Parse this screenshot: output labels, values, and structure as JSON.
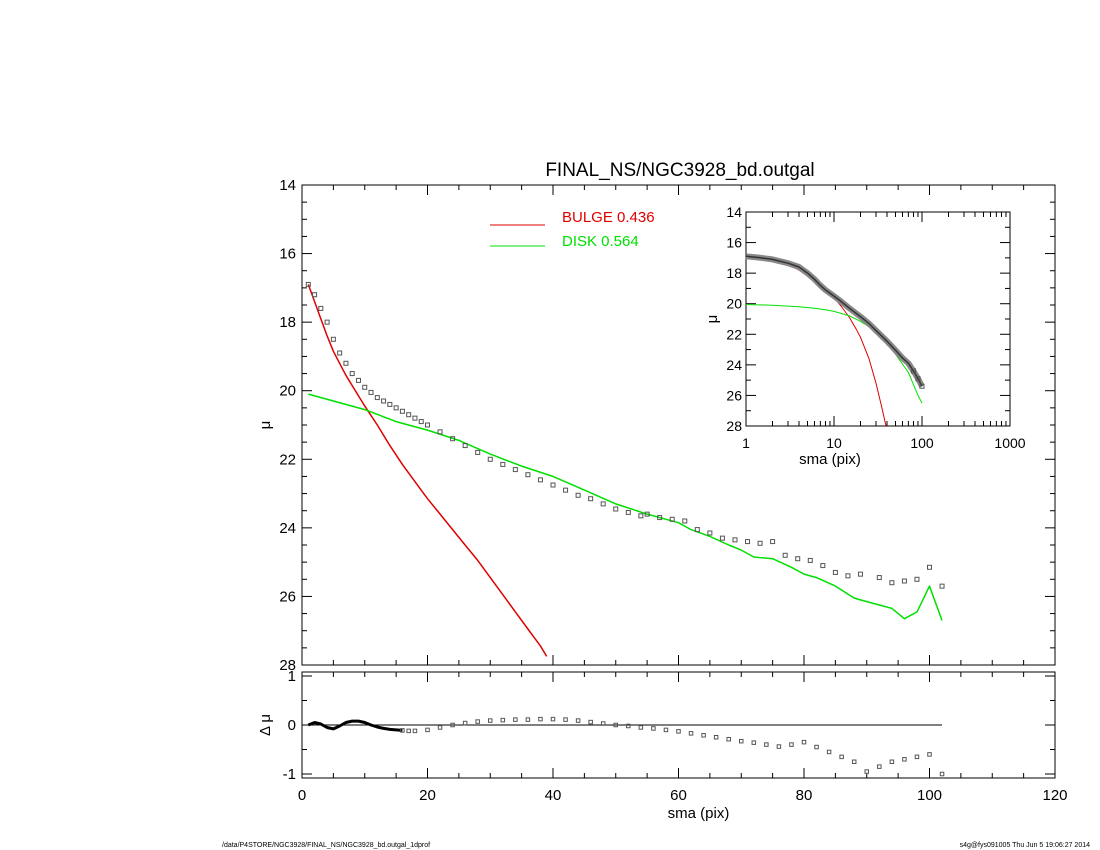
{
  "title": "FINAL_NS/NGC3928_bd.outgal",
  "footer": {
    "left": "/data/P4STORE/NGC3928/FINAL_NS/NGC3928_bd.outgal_1dprof",
    "right": "s4g@fys091005  Thu Jun  5 19:06:27 2014"
  },
  "legend": {
    "bulge": {
      "label": "BULGE  0.436",
      "color": "#e00000"
    },
    "disk": {
      "label": "DISK  0.564",
      "color": "#00e000"
    }
  },
  "colors": {
    "bulge": "#e00000",
    "disk": "#00e000",
    "data": "#555555"
  },
  "chart_data": [
    {
      "type": "line",
      "panel": "main",
      "title": "FINAL_NS/NGC3928_bd.outgal",
      "xlabel": "",
      "ylabel": "μ",
      "xlim": [
        0,
        120
      ],
      "ylim": [
        28,
        14
      ],
      "xticks": [
        0,
        20,
        40,
        60,
        80,
        100,
        120
      ],
      "yticks": [
        14,
        16,
        18,
        20,
        22,
        24,
        26,
        28
      ],
      "series": [
        {
          "name": "data",
          "style": "squares",
          "x": [
            1,
            2,
            3,
            4,
            5,
            6,
            7,
            8,
            9,
            10,
            11,
            12,
            13,
            14,
            15,
            16,
            17,
            18,
            19,
            20,
            22,
            24,
            26,
            28,
            30,
            32,
            34,
            36,
            38,
            40,
            42,
            44,
            46,
            48,
            50,
            52,
            54,
            55,
            57,
            59,
            61,
            63,
            65,
            67,
            69,
            71,
            73,
            75,
            77,
            79,
            81,
            83,
            85,
            87,
            89,
            92,
            94,
            96,
            98,
            100,
            102
          ],
          "y": [
            16.9,
            17.2,
            17.6,
            18.0,
            18.5,
            18.9,
            19.2,
            19.5,
            19.7,
            19.9,
            20.05,
            20.2,
            20.3,
            20.4,
            20.5,
            20.6,
            20.7,
            20.8,
            20.9,
            21.0,
            21.2,
            21.4,
            21.6,
            21.8,
            22.0,
            22.15,
            22.3,
            22.45,
            22.6,
            22.75,
            22.9,
            23.05,
            23.15,
            23.3,
            23.45,
            23.55,
            23.65,
            23.6,
            23.7,
            23.75,
            23.8,
            24.05,
            24.15,
            24.3,
            24.35,
            24.4,
            24.45,
            24.4,
            24.8,
            24.9,
            24.95,
            25.1,
            25.3,
            25.4,
            25.35,
            25.45,
            25.6,
            25.55,
            25.5,
            25.15,
            25.7
          ]
        },
        {
          "name": "BULGE  0.436",
          "style": "line",
          "x": [
            1,
            2,
            3,
            4,
            5,
            6,
            7,
            8,
            9,
            10,
            12,
            14,
            16,
            18,
            20,
            22,
            24,
            26,
            28,
            30,
            32,
            34,
            36,
            38,
            39
          ],
          "y": [
            16.9,
            17.4,
            17.9,
            18.4,
            18.85,
            19.2,
            19.55,
            19.85,
            20.15,
            20.45,
            21.0,
            21.6,
            22.15,
            22.65,
            23.15,
            23.6,
            24.05,
            24.5,
            24.95,
            25.45,
            25.95,
            26.45,
            26.95,
            27.45,
            27.75
          ]
        },
        {
          "name": "DISK  0.564",
          "style": "line",
          "x": [
            1,
            5,
            10,
            15,
            20,
            25,
            30,
            35,
            40,
            45,
            50,
            55,
            60,
            62,
            65,
            68,
            70,
            72,
            75,
            78,
            80,
            82,
            85,
            88,
            90,
            92,
            94,
            96,
            98,
            100,
            102
          ],
          "y": [
            20.1,
            20.3,
            20.55,
            20.9,
            21.15,
            21.45,
            21.85,
            22.2,
            22.5,
            22.9,
            23.3,
            23.6,
            23.85,
            24.05,
            24.25,
            24.5,
            24.65,
            24.85,
            24.9,
            25.15,
            25.35,
            25.45,
            25.7,
            26.05,
            26.15,
            26.25,
            26.35,
            26.65,
            26.45,
            25.7,
            26.7
          ]
        }
      ]
    },
    {
      "type": "scatter",
      "panel": "residual",
      "xlabel": "sma (pix)",
      "ylabel": "Δ μ",
      "xlim": [
        0,
        120
      ],
      "ylim": [
        -1.05,
        1
      ],
      "xticks": [
        0,
        20,
        40,
        60,
        80,
        100,
        120
      ],
      "yticks": [
        -1,
        0,
        1
      ],
      "series": [
        {
          "name": "residual",
          "x": [
            1,
            2,
            3,
            4,
            5,
            6,
            7,
            8,
            9,
            10,
            11,
            12,
            13,
            14,
            15,
            16,
            17,
            18,
            20,
            22,
            24,
            26,
            28,
            30,
            32,
            34,
            36,
            38,
            40,
            42,
            44,
            46,
            48,
            50,
            52,
            54,
            56,
            58,
            60,
            62,
            64,
            66,
            68,
            70,
            72,
            74,
            76,
            78,
            80,
            82,
            84,
            86,
            88,
            90,
            92,
            94,
            96,
            98,
            100,
            102
          ],
          "y": [
            0.0,
            0.05,
            0.02,
            -0.05,
            -0.08,
            -0.02,
            0.05,
            0.08,
            0.08,
            0.05,
            0.0,
            -0.04,
            -0.07,
            -0.09,
            -0.1,
            -0.11,
            -0.12,
            -0.12,
            -0.1,
            -0.05,
            0.0,
            0.04,
            0.07,
            0.09,
            0.1,
            0.11,
            0.11,
            0.12,
            0.12,
            0.11,
            0.09,
            0.06,
            0.03,
            0.0,
            -0.02,
            -0.05,
            -0.07,
            -0.1,
            -0.13,
            -0.17,
            -0.21,
            -0.25,
            -0.29,
            -0.33,
            -0.36,
            -0.4,
            -0.44,
            -0.4,
            -0.35,
            -0.45,
            -0.55,
            -0.65,
            -0.75,
            -0.95,
            -0.85,
            -0.75,
            -0.7,
            -0.65,
            -0.6,
            -1.0
          ]
        },
        {
          "name": "zero",
          "x": [
            1,
            102
          ],
          "y": [
            0,
            0
          ]
        }
      ]
    },
    {
      "type": "line",
      "panel": "inset",
      "xlabel": "sma (pix)",
      "ylabel": "μ",
      "xscale": "log",
      "xlim": [
        1,
        1000
      ],
      "ylim": [
        28,
        14
      ],
      "xticks": [
        1,
        10,
        100,
        1000
      ],
      "yticks": [
        14,
        16,
        18,
        20,
        22,
        24,
        26,
        28
      ],
      "series": [
        {
          "name": "data",
          "x": [
            1,
            1.5,
            2,
            3,
            4,
            5,
            6,
            7,
            8,
            10,
            12,
            15,
            20,
            25,
            30,
            40,
            50,
            60,
            70,
            80,
            90,
            100
          ],
          "y": [
            16.9,
            17.0,
            17.1,
            17.35,
            17.6,
            18.0,
            18.4,
            18.8,
            19.1,
            19.5,
            19.85,
            20.3,
            20.85,
            21.3,
            21.75,
            22.45,
            23.05,
            23.55,
            23.9,
            24.4,
            24.9,
            25.4
          ]
        },
        {
          "name": "BULGE",
          "x": [
            1,
            2,
            3,
            4,
            5,
            6,
            8,
            10,
            12,
            15,
            18,
            20,
            25,
            30,
            35,
            39
          ],
          "y": [
            16.9,
            17.15,
            17.45,
            17.8,
            18.2,
            18.55,
            19.1,
            19.6,
            20.15,
            20.9,
            21.7,
            22.2,
            23.6,
            25.2,
            26.8,
            28.0
          ]
        },
        {
          "name": "DISK",
          "x": [
            1,
            2,
            4,
            6,
            8,
            10,
            15,
            20,
            30,
            50,
            70,
            90,
            100
          ],
          "y": [
            20.05,
            20.1,
            20.2,
            20.3,
            20.4,
            20.5,
            20.8,
            21.15,
            21.8,
            23.3,
            24.5,
            26.0,
            26.5
          ]
        }
      ]
    }
  ]
}
